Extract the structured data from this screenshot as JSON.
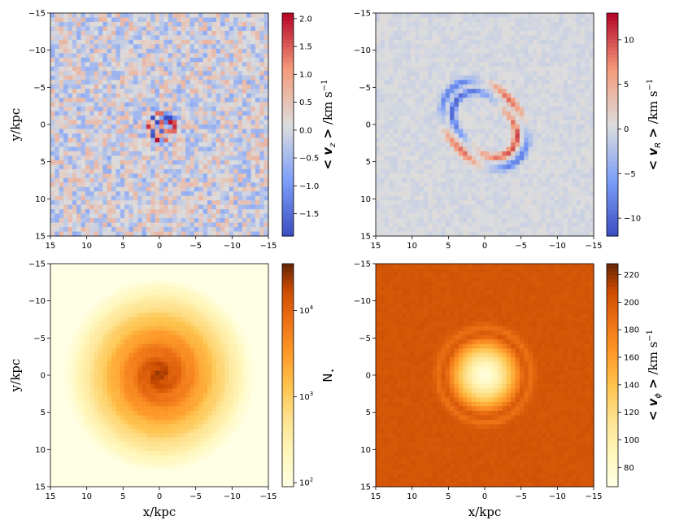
{
  "chart_data": [
    {
      "type": "heatmap",
      "panel": "top-left",
      "quantity": "<v_z>",
      "colormap": "coolwarm",
      "xlim": [
        15,
        -15
      ],
      "ylim": [
        -15,
        15
      ],
      "xticks": [
        15,
        10,
        5,
        0,
        -5,
        -10,
        -15
      ],
      "yticks": [
        -15,
        -10,
        -5,
        0,
        5,
        10,
        15
      ],
      "xtick_labels": [
        "15",
        "10",
        "5",
        "0",
        "−5",
        "−10",
        "−15"
      ],
      "ytick_labels": [
        "−15",
        "−10",
        "−5",
        "0",
        "5",
        "10",
        "15"
      ],
      "xlabel": "",
      "ylabel": "y/kpc",
      "colorbar": {
        "label_parts": [
          "< v",
          "z",
          " >",
          " /km s",
          "−1"
        ],
        "range": [
          -1.9,
          2.1
        ],
        "ticks": [
          -1.5,
          -1.0,
          -0.5,
          0.0,
          0.5,
          1.0,
          1.5,
          2.0
        ],
        "tick_labels": [
          "−1.5",
          "−1.0",
          "−0.5",
          "0.0",
          "0.5",
          "1.0",
          "1.5",
          "2.0"
        ]
      },
      "grid": false,
      "description_values": {
        "noise_amplitude": 0.6,
        "center_peak": 2.0,
        "center_trough": -1.8
      }
    },
    {
      "type": "heatmap",
      "panel": "top-right",
      "quantity": "<v_R>",
      "colormap": "coolwarm",
      "xlim": [
        15,
        -15
      ],
      "ylim": [
        -15,
        15
      ],
      "xticks": [
        15,
        10,
        5,
        0,
        -5,
        -10,
        -15
      ],
      "yticks": [
        -15,
        -10,
        -5,
        0,
        5,
        10,
        15
      ],
      "xtick_labels": [
        "15",
        "10",
        "5",
        "0",
        "−5",
        "−10",
        "−15"
      ],
      "ytick_labels": [
        "−15",
        "−10",
        "−5",
        "0",
        "5",
        "10",
        "15"
      ],
      "xlabel": "",
      "ylabel": "",
      "colorbar": {
        "label_parts": [
          "< v",
          "R",
          " >",
          " /km s",
          "−1"
        ],
        "range": [
          -12,
          13
        ],
        "ticks": [
          -10,
          -5,
          0,
          5,
          10
        ],
        "tick_labels": [
          "−10",
          "−5",
          "0",
          "5",
          "10"
        ]
      },
      "grid": false,
      "description_values": {
        "ring_inner_radius_kpc": 3.8,
        "ring_outer_radius_kpc": 6.2,
        "ring_amplitude": 12
      }
    },
    {
      "type": "heatmap",
      "panel": "bottom-left",
      "quantity": "N_*",
      "colormap": "YlOrBr",
      "scale": "log",
      "xlim": [
        15,
        -15
      ],
      "ylim": [
        -15,
        15
      ],
      "xticks": [
        15,
        10,
        5,
        0,
        -5,
        -10,
        -15
      ],
      "yticks": [
        -15,
        -10,
        -5,
        0,
        5,
        10,
        15
      ],
      "xtick_labels": [
        "15",
        "10",
        "5",
        "0",
        "−5",
        "−10",
        "−15"
      ],
      "ytick_labels": [
        "−15",
        "−10",
        "−5",
        "0",
        "5",
        "10",
        "15"
      ],
      "xlabel": "x/kpc",
      "ylabel": "y/kpc",
      "colorbar": {
        "label_parts": [
          "N",
          "⋆"
        ],
        "range": [
          90,
          35000
        ],
        "ticks": [
          100,
          1000,
          10000
        ],
        "tick_labels": [
          [
            "10",
            "2"
          ],
          [
            "10",
            "3"
          ],
          [
            "10",
            "4"
          ]
        ]
      },
      "grid": false
    },
    {
      "type": "heatmap",
      "panel": "bottom-right",
      "quantity": "<v_phi>",
      "colormap": "YlOrBr",
      "xlim": [
        15,
        -15
      ],
      "ylim": [
        -15,
        15
      ],
      "xticks": [
        15,
        10,
        5,
        0,
        -5,
        -10,
        -15
      ],
      "yticks": [
        -15,
        -10,
        -5,
        0,
        5,
        10,
        15
      ],
      "xtick_labels": [
        "15",
        "10",
        "5",
        "0",
        "−5",
        "−10",
        "−15"
      ],
      "ytick_labels": [
        "−15",
        "−10",
        "−5",
        "0",
        "5",
        "10",
        "15"
      ],
      "xlabel": "x/kpc",
      "ylabel": "",
      "colorbar": {
        "label_parts": [
          "< v",
          "ϕ",
          " >",
          " /km s",
          "−1"
        ],
        "range": [
          66,
          228
        ],
        "ticks": [
          80,
          100,
          120,
          140,
          160,
          180,
          200,
          220
        ],
        "tick_labels": [
          "80",
          "100",
          "120",
          "140",
          "160",
          "180",
          "200",
          "220"
        ]
      },
      "grid": false,
      "description_values": {
        "outer_level": 200,
        "center_min": 70,
        "core_radius_kpc": 5.5
      }
    }
  ]
}
